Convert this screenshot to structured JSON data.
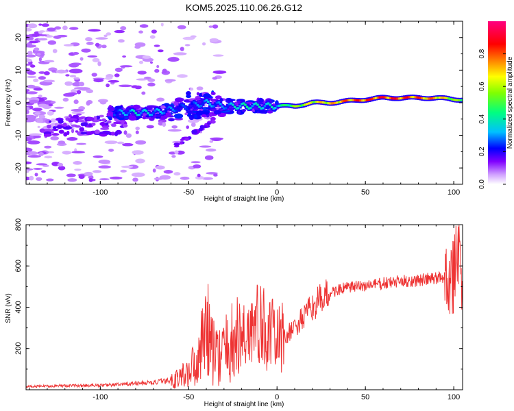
{
  "title": "KOM5.2025.110.06.26.G12",
  "chart_data": [
    {
      "type": "heatmap",
      "name": "spectrogram",
      "xlabel": "Height of straight line (km)",
      "ylabel": "Frequency (Hz)",
      "xlim": [
        -142,
        105
      ],
      "ylim": [
        -25,
        25
      ],
      "xticks": [
        -100,
        -50,
        0,
        50,
        100
      ],
      "yticks": [
        -20,
        -10,
        0,
        10,
        20
      ],
      "colorbar": {
        "label": "Normalized spectral amplitude",
        "range": [
          0,
          1
        ],
        "ticks": [
          "0.0",
          "0.2",
          "0.4",
          "0.6",
          "0.8"
        ],
        "colormap": [
          "#ffffff",
          "#c080ff",
          "#8000ff",
          "#0000ff",
          "#00c0ff",
          "#00ff80",
          "#80ff00",
          "#ffff00",
          "#ff8000",
          "#ff0000",
          "#ff0080"
        ]
      },
      "ridge": {
        "x": [
          -90,
          -80,
          -70,
          -60,
          -50,
          -40,
          -30,
          -20,
          -10,
          0,
          10,
          20,
          30,
          40,
          50,
          60,
          70,
          80,
          90,
          100
        ],
        "freq": [
          -3,
          -3,
          -3,
          -2,
          -1,
          0,
          -1,
          -1,
          -1,
          -1,
          -1,
          0,
          0,
          0.5,
          1,
          1.5,
          1.5,
          1.5,
          1.5,
          1
        ],
        "amplitude": [
          0.3,
          0.4,
          0.35,
          0.3,
          0.25,
          0.35,
          0.3,
          0.45,
          0.4,
          0.4,
          0.6,
          0.7,
          0.75,
          0.85,
          0.9,
          0.9,
          0.9,
          0.85,
          0.8,
          0.6
        ]
      }
    },
    {
      "type": "line",
      "name": "snr",
      "xlabel": "Height of straight line (km)",
      "ylabel": "SNR (v/v)",
      "xlim": [
        -142,
        105
      ],
      "ylim": [
        0,
        800
      ],
      "xticks": [
        -100,
        -50,
        0,
        50,
        100
      ],
      "yticks": [
        200,
        400,
        600,
        800
      ],
      "color": "#ee3333",
      "x": [
        -142,
        -130,
        -120,
        -110,
        -100,
        -90,
        -80,
        -70,
        -60,
        -55,
        -50,
        -45,
        -42,
        -40,
        -38,
        -35,
        -30,
        -25,
        -20,
        -15,
        -10,
        -5,
        0,
        5,
        10,
        15,
        20,
        25,
        30,
        35,
        40,
        50,
        60,
        70,
        80,
        90,
        95,
        100,
        103,
        105
      ],
      "y": [
        15,
        18,
        20,
        20,
        22,
        25,
        30,
        35,
        45,
        60,
        90,
        150,
        250,
        320,
        250,
        160,
        180,
        230,
        250,
        300,
        310,
        280,
        240,
        260,
        300,
        350,
        400,
        440,
        470,
        485,
        495,
        505,
        515,
        525,
        530,
        540,
        550,
        560,
        600,
        650
      ]
    }
  ]
}
